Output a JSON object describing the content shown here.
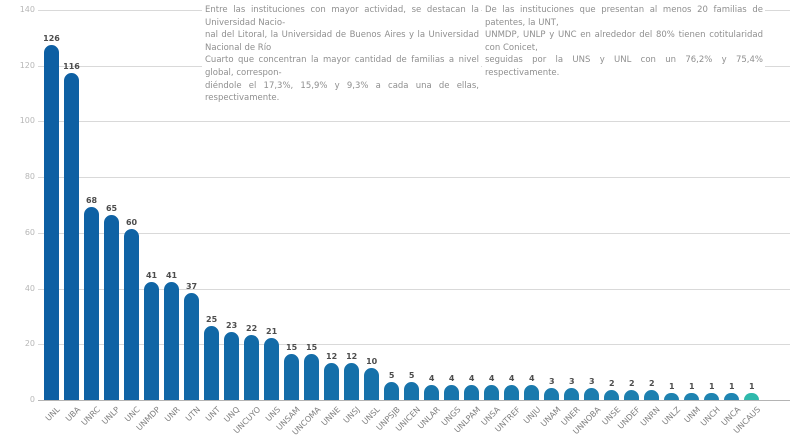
{
  "annotations": {
    "left_note": "Entre las instituciones con mayor actividad, se destacan la Universidad Nacio-\nnal del Litoral, la Universidad de Buenos Aires y la Universidad Nacional de Río\nCuarto que concentran la mayor cantidad de familias a nivel global, correspon-\ndiéndole el 17,3%, 15,9% y 9,3% a cada una de ellas, respectivamente.",
    "right_note": "De las instituciones que presentan al menos 20 familias de patentes, la UNT,\nUNMDP, UNLP y UNC en alrededor del 80% tienen cotitularidad con Conicet,\nseguidas por la UNS y UNL con un 76,2% y 75,4% respectivamente."
  },
  "chart_data": {
    "type": "bar",
    "title": "",
    "xlabel": "",
    "ylabel": "",
    "categories": [
      "UNL",
      "UBA",
      "UNRC",
      "UNLP",
      "UNC",
      "UNMDP",
      "UNR",
      "UTN",
      "UNT",
      "UNQ",
      "UNCUYO",
      "UNS",
      "UNSAM",
      "UNCOMA",
      "UNNE",
      "UNSJ",
      "UNSL",
      "UNPSJB",
      "UNICEN",
      "UNLAR",
      "UNGS",
      "UNLPAM",
      "UNSA",
      "UNTREF",
      "UNJU",
      "UNAM",
      "UNER",
      "UNNOBA",
      "UNSE",
      "UNDEF",
      "UNRN",
      "UNLZ",
      "UNM",
      "UNCH",
      "UNCA",
      "UNCAUS"
    ],
    "values": [
      126,
      116,
      68,
      65,
      60,
      41,
      41,
      37,
      25,
      23,
      22,
      21,
      15,
      15,
      12,
      12,
      10,
      5,
      5,
      4,
      4,
      4,
      4,
      4,
      4,
      3,
      3,
      3,
      2,
      2,
      2,
      1,
      1,
      1,
      1,
      1
    ],
    "show_value_labels": true,
    "yticks": [
      0,
      20,
      40,
      60,
      80,
      100,
      120,
      140
    ],
    "ylim": [
      0,
      140
    ],
    "grid": true,
    "legend": false,
    "colors": {
      "bar_start": "#0d5fa3",
      "bar_end": "#2086b2",
      "bar_last": "#2fb9ac",
      "gridline": "#d9d9d9",
      "axis_line": "#b4b4b4",
      "value_label": "#4d4d4d",
      "ytick_label": "#b7b7b7",
      "category_label": "#808080"
    }
  }
}
